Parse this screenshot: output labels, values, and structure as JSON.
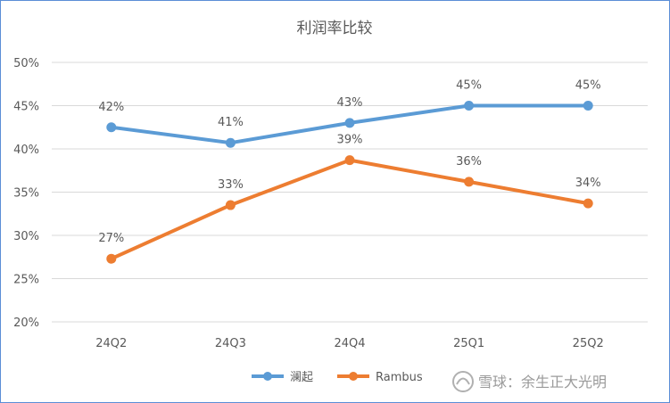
{
  "chart_data": {
    "type": "line",
    "title": "利润率比较",
    "categories": [
      "24Q2",
      "24Q3",
      "24Q4",
      "25Q1",
      "25Q2"
    ],
    "ylim": [
      0.2,
      0.5
    ],
    "yticks": [
      "20%",
      "25%",
      "30%",
      "35%",
      "40%",
      "45%",
      "50%"
    ],
    "grid": true,
    "legend_position": "bottom",
    "series": [
      {
        "name": "澜起",
        "color": "#5b9bd5",
        "values": [
          0.425,
          0.407,
          0.43,
          0.45,
          0.45
        ],
        "labels": [
          "42%",
          "41%",
          "43%",
          "45%",
          "45%"
        ]
      },
      {
        "name": "Rambus",
        "color": "#ed7d31",
        "values": [
          0.273,
          0.335,
          0.387,
          0.362,
          0.337
        ],
        "labels": [
          "27%",
          "33%",
          "39%",
          "36%",
          "34%"
        ]
      }
    ]
  },
  "watermark": {
    "text": "雪球：余生正大光明"
  }
}
